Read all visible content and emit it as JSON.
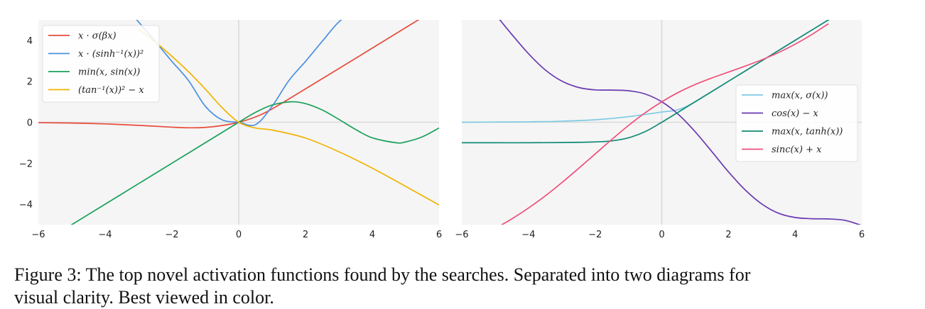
{
  "chart_data": [
    {
      "type": "line",
      "xlim": [
        -6,
        6
      ],
      "ylim": [
        -5,
        5
      ],
      "xticks": [
        "−6",
        "−4",
        "−2",
        "0",
        "2",
        "4",
        "6"
      ],
      "yticks": [
        "−4",
        "−2",
        "0",
        "2",
        "4"
      ],
      "grid": false,
      "legend_position": "top-left",
      "series": [
        {
          "name": "x · σ(βx)",
          "color": "#e74c3c",
          "x": [
            -6,
            -5,
            -4,
            -3,
            -2,
            -1.5,
            -1,
            -0.5,
            0,
            0.5,
            1,
            2,
            3,
            4,
            5,
            6
          ],
          "y": [
            -0.02,
            -0.04,
            -0.08,
            -0.15,
            -0.24,
            -0.27,
            -0.25,
            -0.16,
            0,
            0.26,
            0.65,
            1.63,
            2.62,
            3.62,
            4.62,
            5.62
          ]
        },
        {
          "name": "x · (sinh⁻¹(x))²",
          "color": "#4a90e2",
          "x": [
            -3.3,
            -3,
            -2.5,
            -2,
            -1.5,
            -1,
            -0.5,
            0,
            0.5,
            1,
            1.5,
            2,
            2.5,
            3,
            3.5,
            3.8
          ],
          "y": [
            5.4,
            4.9,
            3.95,
            2.97,
            2.03,
            0.78,
            0.12,
            0,
            -0.12,
            0.78,
            2.03,
            2.97,
            3.95,
            4.9,
            5.5,
            6
          ]
        },
        {
          "name": "min(x, sin(x))",
          "color": "#1aa05a",
          "x": [
            -6,
            -5,
            -4,
            -3,
            -2,
            -1,
            0,
            0.5,
            1,
            1.57,
            2,
            2.5,
            3,
            3.5,
            4,
            4.71,
            5,
            5.5,
            6
          ],
          "y": [
            -6,
            -5,
            -4,
            -3,
            -2,
            -1,
            0,
            0.48,
            0.84,
            1,
            0.91,
            0.6,
            0.14,
            -0.35,
            -0.76,
            -1,
            -0.96,
            -0.71,
            -0.28
          ]
        },
        {
          "name": "(tan⁻¹(x))² − x",
          "color": "#f0b400",
          "x": [
            -3,
            -2.5,
            -2,
            -1.5,
            -1,
            -0.5,
            0,
            0.5,
            1,
            2,
            3,
            4,
            5,
            6
          ],
          "y": [
            4.55,
            3.92,
            3.22,
            2.46,
            1.62,
            0.72,
            0,
            -0.28,
            -0.38,
            -0.77,
            -1.44,
            -2.24,
            -3.13,
            -4.04
          ]
        }
      ]
    },
    {
      "type": "line",
      "xlim": [
        -6,
        6
      ],
      "ylim": [
        -5,
        5
      ],
      "xticks": [
        "−6",
        "−4",
        "−2",
        "0",
        "2",
        "4",
        "6"
      ],
      "yticks": [],
      "grid": false,
      "legend_position": "center-right",
      "series": [
        {
          "name": "max(x, σ(x))",
          "color": "#7ecae3",
          "x": [
            -6,
            -5,
            -4,
            -3,
            -2,
            -1,
            0,
            0.5,
            1,
            2,
            3,
            4,
            5,
            6
          ],
          "y": [
            0,
            0.01,
            0.02,
            0.05,
            0.12,
            0.27,
            0.5,
            0.62,
            1,
            2,
            3,
            4,
            5,
            6
          ]
        },
        {
          "name": "cos(x) − x",
          "color": "#6a3ab2",
          "x": [
            -5,
            -4.5,
            -4,
            -3.5,
            -3,
            -2.5,
            -2,
            -1.5,
            -1,
            -0.5,
            0,
            0.5,
            1,
            1.5,
            2,
            2.5,
            3,
            3.5,
            4,
            4.5,
            5,
            5.5,
            6
          ],
          "y": [
            5.28,
            4.29,
            3.35,
            2.56,
            2.01,
            1.7,
            1.58,
            1.57,
            1.54,
            1.38,
            1,
            0.38,
            -0.46,
            -1.43,
            -2.42,
            -3.3,
            -3.99,
            -4.44,
            -4.65,
            -4.71,
            -4.72,
            -4.79,
            -5.04
          ]
        },
        {
          "name": "max(x, tanh(x))",
          "color": "#138a75",
          "x": [
            -6,
            -5,
            -4,
            -3,
            -2,
            -1.5,
            -1,
            -0.5,
            0,
            1,
            2,
            3,
            4,
            5,
            6
          ],
          "y": [
            -1,
            -1,
            -1,
            -0.99,
            -0.96,
            -0.91,
            -0.76,
            -0.46,
            0,
            1,
            2,
            3,
            4,
            5,
            6
          ]
        },
        {
          "name": "sinc(x) + x",
          "color": "#f0507a",
          "x": [
            -5,
            -4.5,
            -4,
            -3.5,
            -3,
            -2.5,
            -2,
            -1.5,
            -1,
            -0.5,
            0,
            0.5,
            1,
            1.5,
            2,
            2.5,
            3,
            3.5,
            4,
            4.5,
            5
          ],
          "y": [
            -5.19,
            -4.72,
            -4.19,
            -3.6,
            -2.95,
            -2.26,
            -1.55,
            -0.84,
            -0.16,
            0.46,
            1,
            1.46,
            1.84,
            2.16,
            2.45,
            2.74,
            3.05,
            3.4,
            3.81,
            4.28,
            4.81
          ]
        }
      ]
    }
  ],
  "caption_line1": "Figure 3: The top novel activation functions found by the searches. Separated into two diagrams for",
  "caption_line2": "visual clarity. Best viewed in color."
}
